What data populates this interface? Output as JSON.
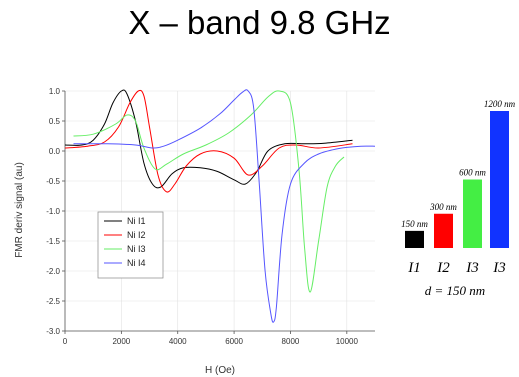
{
  "title": "X – band 9.8 GHz",
  "chart_data": [
    {
      "type": "line",
      "xlabel": "H (Oe)",
      "ylabel": "FMR deriv signal (au)",
      "xlim": [
        0,
        11000
      ],
      "ylim": [
        -3.0,
        1.0
      ],
      "xticks": [
        "0",
        "2000",
        "4000",
        "6000",
        "8000",
        "10000"
      ],
      "yticks": [
        "1.0",
        "0.5",
        "0.0",
        "-0.5",
        "-1.0",
        "-1.5",
        "-2.0",
        "-2.5",
        "-3.0"
      ],
      "legend_position": "lower-left",
      "series": [
        {
          "name": "Ni I1",
          "color": "#000000",
          "x": [
            0,
            600,
            1000,
            1400,
            1700,
            2000,
            2200,
            2500,
            2800,
            3100,
            3400,
            3800,
            4200,
            4800,
            5400,
            6000,
            6400,
            6800,
            7200,
            7800,
            8500,
            9200,
            10200
          ],
          "y": [
            0.1,
            0.1,
            0.18,
            0.45,
            0.8,
            1.0,
            0.95,
            0.5,
            -0.2,
            -0.55,
            -0.6,
            -0.38,
            -0.28,
            -0.28,
            -0.34,
            -0.48,
            -0.55,
            -0.35,
            0.0,
            0.12,
            0.12,
            0.13,
            0.18
          ]
        },
        {
          "name": "Ni I2",
          "color": "#ff0000",
          "x": [
            0,
            800,
            1400,
            1900,
            2300,
            2600,
            2800,
            3000,
            3300,
            3600,
            3900,
            4300,
            4800,
            5400,
            6000,
            6500,
            7000,
            7600,
            8200,
            9000,
            10200
          ],
          "y": [
            0.05,
            0.08,
            0.15,
            0.4,
            0.8,
            1.0,
            0.92,
            0.4,
            -0.4,
            -0.68,
            -0.55,
            -0.25,
            -0.05,
            0.0,
            -0.12,
            -0.4,
            -0.25,
            0.05,
            0.1,
            0.05,
            0.12
          ]
        },
        {
          "name": "Ni I3",
          "color": "#66ee66",
          "x": [
            300,
            1000,
            1800,
            2200,
            2500,
            2800,
            3200,
            3600,
            4200,
            5000,
            5800,
            6600,
            7200,
            7600,
            8000,
            8300,
            8500,
            8700,
            9000,
            9300,
            9600,
            9900
          ],
          "y": [
            0.25,
            0.28,
            0.45,
            0.6,
            0.5,
            0.05,
            -0.3,
            -0.22,
            -0.05,
            0.1,
            0.3,
            0.6,
            0.9,
            1.0,
            0.8,
            -0.3,
            -1.6,
            -2.35,
            -1.5,
            -0.6,
            -0.25,
            -0.1
          ]
        },
        {
          "name": "Ni I4",
          "color": "#5555ff",
          "x": [
            300,
            1500,
            2500,
            3100,
            3500,
            4000,
            4800,
            5500,
            6000,
            6300,
            6500,
            6700,
            6900,
            7100,
            7300,
            7400,
            7500,
            7700,
            8000,
            8500,
            9000,
            9500,
            10000,
            10500,
            11000
          ],
          "y": [
            0.12,
            0.12,
            0.1,
            0.05,
            0.08,
            0.18,
            0.38,
            0.62,
            0.85,
            0.98,
            1.0,
            0.7,
            -0.6,
            -2.0,
            -2.7,
            -2.85,
            -2.6,
            -1.4,
            -0.55,
            -0.2,
            -0.05,
            0.02,
            0.06,
            0.08,
            0.08
          ]
        }
      ]
    },
    {
      "type": "bar",
      "categories": [
        "I1",
        "I2",
        "I3",
        "I3"
      ],
      "values": [
        150,
        300,
        600,
        1200
      ],
      "data_labels": [
        "150 nm",
        "300 nm",
        "600 nm",
        "1200 nm"
      ],
      "colors": [
        "#000000",
        "#ff0000",
        "#44ee44",
        "#1133ff"
      ],
      "annotation": "d = 150 nm"
    }
  ]
}
